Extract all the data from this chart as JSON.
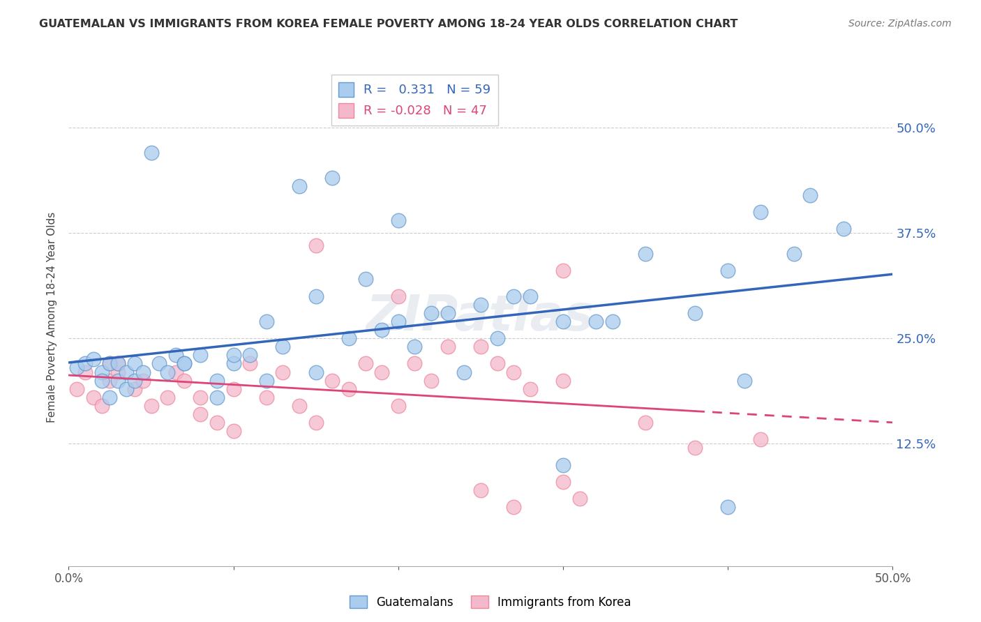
{
  "title": "GUATEMALAN VS IMMIGRANTS FROM KOREA FEMALE POVERTY AMONG 18-24 YEAR OLDS CORRELATION CHART",
  "source": "Source: ZipAtlas.com",
  "ylabel": "Female Poverty Among 18-24 Year Olds",
  "ytick_values": [
    0.5,
    0.375,
    0.25,
    0.125
  ],
  "xlim": [
    0.0,
    0.5
  ],
  "ylim": [
    -0.02,
    0.57
  ],
  "r_guatemalan": 0.331,
  "n_guatemalan": 59,
  "r_korean": -0.028,
  "n_korean": 47,
  "blue_scatter_color": "#aaccee",
  "pink_scatter_color": "#f4b8cc",
  "blue_edge_color": "#6699cc",
  "pink_edge_color": "#ee8899",
  "blue_line_color": "#3366bb",
  "pink_line_color": "#dd4477",
  "legend_label_1": "Guatemalans",
  "legend_label_2": "Immigrants from Korea",
  "guatemalan_x": [
    0.005,
    0.01,
    0.015,
    0.02,
    0.02,
    0.025,
    0.025,
    0.03,
    0.03,
    0.035,
    0.035,
    0.04,
    0.04,
    0.045,
    0.05,
    0.055,
    0.06,
    0.065,
    0.07,
    0.08,
    0.09,
    0.1,
    0.1,
    0.11,
    0.12,
    0.13,
    0.14,
    0.15,
    0.16,
    0.17,
    0.18,
    0.19,
    0.2,
    0.21,
    0.22,
    0.23,
    0.24,
    0.25,
    0.26,
    0.27,
    0.28,
    0.3,
    0.32,
    0.33,
    0.35,
    0.38,
    0.4,
    0.41,
    0.42,
    0.44,
    0.45,
    0.47,
    0.07,
    0.09,
    0.12,
    0.15,
    0.2,
    0.3,
    0.4
  ],
  "guatemalan_y": [
    0.215,
    0.22,
    0.225,
    0.21,
    0.2,
    0.22,
    0.18,
    0.22,
    0.2,
    0.19,
    0.21,
    0.2,
    0.22,
    0.21,
    0.47,
    0.22,
    0.21,
    0.23,
    0.22,
    0.23,
    0.2,
    0.22,
    0.23,
    0.23,
    0.27,
    0.24,
    0.43,
    0.3,
    0.44,
    0.25,
    0.32,
    0.26,
    0.27,
    0.24,
    0.28,
    0.28,
    0.21,
    0.29,
    0.25,
    0.3,
    0.3,
    0.27,
    0.27,
    0.27,
    0.35,
    0.28,
    0.33,
    0.2,
    0.4,
    0.35,
    0.42,
    0.38,
    0.22,
    0.18,
    0.2,
    0.21,
    0.39,
    0.1,
    0.05
  ],
  "korean_x": [
    0.005,
    0.01,
    0.015,
    0.02,
    0.025,
    0.025,
    0.03,
    0.03,
    0.04,
    0.045,
    0.05,
    0.06,
    0.065,
    0.07,
    0.08,
    0.09,
    0.1,
    0.11,
    0.12,
    0.13,
    0.14,
    0.15,
    0.16,
    0.17,
    0.18,
    0.19,
    0.2,
    0.21,
    0.22,
    0.23,
    0.25,
    0.26,
    0.27,
    0.28,
    0.3,
    0.31,
    0.35,
    0.38,
    0.25,
    0.3,
    0.2,
    0.15,
    0.1,
    0.08,
    0.3,
    0.42,
    0.27
  ],
  "korean_y": [
    0.19,
    0.21,
    0.18,
    0.17,
    0.22,
    0.2,
    0.21,
    0.22,
    0.19,
    0.2,
    0.17,
    0.18,
    0.21,
    0.2,
    0.18,
    0.15,
    0.19,
    0.22,
    0.18,
    0.21,
    0.17,
    0.36,
    0.2,
    0.19,
    0.22,
    0.21,
    0.17,
    0.22,
    0.2,
    0.24,
    0.24,
    0.22,
    0.21,
    0.19,
    0.2,
    0.06,
    0.15,
    0.12,
    0.07,
    0.33,
    0.3,
    0.15,
    0.14,
    0.16,
    0.08,
    0.13,
    0.05
  ],
  "background_color": "#ffffff",
  "grid_color": "#cccccc"
}
